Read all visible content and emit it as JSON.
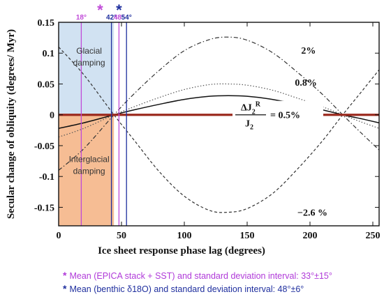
{
  "chart_data": {
    "type": "line",
    "xlabel": "Ice sheet response phase lag (degrees)",
    "ylabel": "Secular change of obliquity (degrees/ Myr)",
    "xlim": [
      0,
      255
    ],
    "ylim": [
      -0.18,
      0.15
    ],
    "x_ticks": [
      "0",
      "50",
      "100",
      "150",
      "200",
      "250"
    ],
    "y_ticks": [
      "0.15",
      "0.1",
      "0.05",
      "0",
      "-0.05",
      "-0.1",
      "-0.15"
    ],
    "grid": false,
    "regions": [
      {
        "label": "Glacial damping",
        "x": [
          0,
          44
        ],
        "y": [
          0,
          0.15
        ],
        "color": "#cfe0f1"
      },
      {
        "label": "Interglacial damping",
        "x": [
          0,
          44
        ],
        "y": [
          -0.18,
          0
        ],
        "color": "#f6b98e"
      }
    ],
    "series": [
      {
        "name": "2%",
        "style": "dash-dot",
        "color": "#333333",
        "x": [
          0,
          20,
          44,
          60,
          80,
          100,
          120,
          135,
          150,
          170,
          190,
          210,
          226,
          240,
          255
        ],
        "y": [
          -0.09,
          -0.055,
          0,
          0.034,
          0.072,
          0.104,
          0.122,
          0.126,
          0.121,
          0.101,
          0.069,
          0.033,
          0,
          -0.028,
          -0.057
        ]
      },
      {
        "name": "0.8%",
        "style": "dotted",
        "color": "#555555",
        "x": [
          0,
          20,
          44,
          60,
          80,
          100,
          120,
          135,
          150,
          170,
          190,
          210,
          226,
          240,
          255
        ],
        "y": [
          -0.036,
          -0.022,
          0,
          0.013,
          0.028,
          0.041,
          0.049,
          0.05,
          0.048,
          0.04,
          0.027,
          0.013,
          0,
          -0.011,
          -0.022
        ]
      },
      {
        "name": "ΔJ2R/J2 = 0.5%",
        "style": "solid",
        "color": "#111111",
        "x": [
          0,
          20,
          44,
          60,
          80,
          100,
          120,
          135,
          150,
          170,
          190,
          210,
          226,
          240,
          255
        ],
        "y": [
          -0.022,
          -0.013,
          0,
          0.008,
          0.017,
          0.025,
          0.03,
          0.031,
          0.03,
          0.025,
          0.017,
          0.008,
          0,
          -0.006,
          -0.013
        ]
      },
      {
        "name": "-2.6 %",
        "style": "dashed",
        "color": "#333333",
        "x": [
          0,
          20,
          44,
          60,
          80,
          100,
          120,
          135,
          150,
          170,
          190,
          210,
          226,
          240,
          255
        ],
        "y": [
          0.11,
          0.065,
          0,
          -0.041,
          -0.092,
          -0.132,
          -0.155,
          -0.158,
          -0.152,
          -0.128,
          -0.088,
          -0.042,
          0,
          0.035,
          0.073
        ]
      },
      {
        "name": "",
        "style": "thick",
        "color": "#9b2a1e",
        "x": [
          0,
          255
        ],
        "y": [
          0,
          0
        ]
      }
    ],
    "vertical_lines": [
      {
        "label": "18°",
        "x": 18,
        "color": "#c04ad8"
      },
      {
        "label": "42°",
        "x": 42,
        "color": "#1f2f9e"
      },
      {
        "label": "48°",
        "x": 48,
        "color": "#c04ad8"
      },
      {
        "label": "54°",
        "x": 54,
        "color": "#1f2f9e"
      }
    ],
    "markers": [
      {
        "symbol": "*",
        "x": 33,
        "color": "#c04ad8"
      },
      {
        "symbol": "*",
        "x": 48,
        "color": "#1f2f9e"
      }
    ],
    "curve_labels": [
      {
        "text": "2%",
        "x": 168,
        "y": 0.105
      },
      {
        "text": "0.8%",
        "x": 163,
        "y": 0.053
      },
      {
        "text": "−2.6 %",
        "x": 165,
        "y": -0.158
      }
    ],
    "formula": {
      "num": "ΔJ",
      "sub": "2",
      "sup": "R",
      "den": "J",
      "den_sub": "2",
      "rhs": "= 0.5%",
      "x": 135,
      "y": 0.0
    }
  },
  "notes": [
    {
      "star": "*",
      "text": "Mean  (EPICA stack + SST) and standard deviation interval: 33°±15°",
      "color": "#b03ad9"
    },
    {
      "star": "*",
      "text": "Mean  (benthic δ18O) and standard deviation interval: 48°±6°",
      "color": "#1f2f9e"
    }
  ]
}
